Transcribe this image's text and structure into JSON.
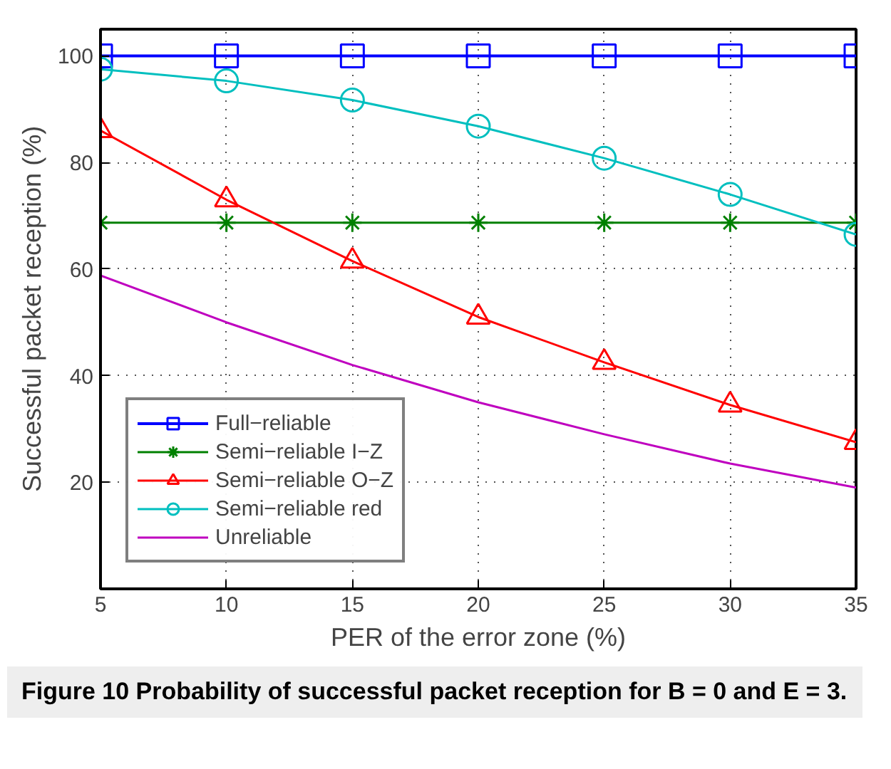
{
  "chart_data": {
    "type": "line",
    "xlabel": "PER of the error zone (%)",
    "ylabel": "Successful packet reception (%)",
    "x": [
      5,
      10,
      15,
      20,
      25,
      30,
      35
    ],
    "series": [
      {
        "name": "Full−reliable",
        "color": "#0000ff",
        "marker": "square",
        "values": [
          100,
          100,
          100,
          100,
          100,
          100,
          100
        ]
      },
      {
        "name": "Semi−reliable I−Z",
        "color": "#008000",
        "marker": "cross",
        "values": [
          68.7,
          68.7,
          68.7,
          68.7,
          68.7,
          68.7,
          68.7
        ]
      },
      {
        "name": "Semi−reliable O−Z",
        "color": "#ff0000",
        "marker": "triangle",
        "values": [
          86,
          73,
          61.5,
          51,
          42.5,
          34.5,
          27.5
        ]
      },
      {
        "name": "Semi−reliable red",
        "color": "#00bfbf",
        "marker": "circle",
        "values": [
          97.5,
          95.3,
          91.7,
          86.8,
          80.8,
          74,
          66.5
        ]
      },
      {
        "name": "Unreliable",
        "color": "#bf00bf",
        "marker": "none",
        "values": [
          58.8,
          50,
          42,
          35,
          29,
          23.5,
          19
        ]
      }
    ],
    "xlim": [
      5,
      35
    ],
    "xticks": [
      5,
      10,
      15,
      20,
      25,
      30,
      35
    ],
    "ylim": [
      0,
      105
    ],
    "yticks": [
      20,
      40,
      60,
      80,
      100
    ],
    "grid": true,
    "line_style": "solid",
    "legend": "bottom left",
    "annotations": [
      "Figure 10 Probability of successful packet reception for B = 0 and E = 3."
    ]
  }
}
